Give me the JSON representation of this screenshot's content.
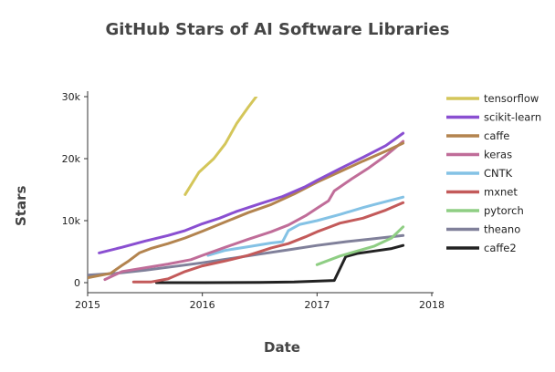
{
  "chart_data": {
    "type": "line",
    "title": "GitHub Stars of AI Software Libraries",
    "xlabel": "Date",
    "ylabel": "Stars",
    "xlim": [
      2015.0,
      2018.0
    ],
    "ylim": [
      0,
      30000
    ],
    "x_ticks": [
      2015,
      2016,
      2017,
      2018
    ],
    "x_tick_labels": [
      "2015",
      "2016",
      "2017",
      "2018"
    ],
    "y_ticks": [
      0,
      10000,
      20000,
      30000
    ],
    "y_tick_labels": [
      "0",
      "10k",
      "20k",
      "30k"
    ],
    "grid": false,
    "legend_position": "right",
    "series": [
      {
        "name": "tensorflow",
        "color": "#d4c65a",
        "points": [
          [
            2015.85,
            14200
          ],
          [
            2015.97,
            17800
          ],
          [
            2016.1,
            20000
          ],
          [
            2016.2,
            22400
          ],
          [
            2016.3,
            25700
          ],
          [
            2016.4,
            28300
          ],
          [
            2016.47,
            30000
          ]
        ]
      },
      {
        "name": "scikit-learn",
        "color": "#8a4fd1",
        "points": [
          [
            2015.1,
            4800
          ],
          [
            2015.3,
            5700
          ],
          [
            2015.5,
            6700
          ],
          [
            2015.7,
            7600
          ],
          [
            2015.85,
            8400
          ],
          [
            2016.0,
            9500
          ],
          [
            2016.15,
            10400
          ],
          [
            2016.3,
            11500
          ],
          [
            2016.5,
            12700
          ],
          [
            2016.7,
            13900
          ],
          [
            2016.9,
            15500
          ],
          [
            2017.0,
            16500
          ],
          [
            2017.2,
            18400
          ],
          [
            2017.4,
            20200
          ],
          [
            2017.6,
            22100
          ],
          [
            2017.75,
            24100
          ]
        ]
      },
      {
        "name": "caffe",
        "color": "#b3844f",
        "points": [
          [
            2015.0,
            800
          ],
          [
            2015.2,
            1500
          ],
          [
            2015.3,
            2800
          ],
          [
            2015.35,
            3400
          ],
          [
            2015.45,
            4800
          ],
          [
            2015.55,
            5500
          ],
          [
            2015.7,
            6300
          ],
          [
            2015.85,
            7200
          ],
          [
            2016.0,
            8300
          ],
          [
            2016.2,
            9800
          ],
          [
            2016.4,
            11300
          ],
          [
            2016.6,
            12600
          ],
          [
            2016.8,
            14300
          ],
          [
            2017.0,
            16200
          ],
          [
            2017.2,
            17900
          ],
          [
            2017.4,
            19600
          ],
          [
            2017.6,
            21200
          ],
          [
            2017.75,
            22500
          ]
        ]
      },
      {
        "name": "keras",
        "color": "#c06d99",
        "points": [
          [
            2015.15,
            500
          ],
          [
            2015.3,
            1800
          ],
          [
            2015.5,
            2400
          ],
          [
            2015.7,
            3000
          ],
          [
            2015.9,
            3700
          ],
          [
            2016.0,
            4400
          ],
          [
            2016.2,
            5700
          ],
          [
            2016.4,
            7000
          ],
          [
            2016.6,
            8200
          ],
          [
            2016.75,
            9300
          ],
          [
            2016.9,
            10800
          ],
          [
            2017.0,
            12000
          ],
          [
            2017.1,
            13200
          ],
          [
            2017.15,
            14800
          ],
          [
            2017.3,
            16700
          ],
          [
            2017.45,
            18500
          ],
          [
            2017.6,
            20500
          ],
          [
            2017.75,
            22800
          ]
        ]
      },
      {
        "name": "CNTK",
        "color": "#84c2e5",
        "points": [
          [
            2016.05,
            4400
          ],
          [
            2016.2,
            5200
          ],
          [
            2016.4,
            5800
          ],
          [
            2016.6,
            6400
          ],
          [
            2016.7,
            6600
          ],
          [
            2016.75,
            8400
          ],
          [
            2016.85,
            9400
          ],
          [
            2017.0,
            10000
          ],
          [
            2017.2,
            11000
          ],
          [
            2017.4,
            12100
          ],
          [
            2017.5,
            12600
          ],
          [
            2017.75,
            13800
          ]
        ]
      },
      {
        "name": "mxnet",
        "color": "#c35a5a",
        "points": [
          [
            2015.4,
            100
          ],
          [
            2015.55,
            100
          ],
          [
            2015.7,
            600
          ],
          [
            2015.85,
            1800
          ],
          [
            2016.0,
            2700
          ],
          [
            2016.2,
            3500
          ],
          [
            2016.4,
            4400
          ],
          [
            2016.6,
            5600
          ],
          [
            2016.75,
            6300
          ],
          [
            2016.9,
            7400
          ],
          [
            2017.0,
            8200
          ],
          [
            2017.1,
            8900
          ],
          [
            2017.2,
            9600
          ],
          [
            2017.4,
            10400
          ],
          [
            2017.6,
            11700
          ],
          [
            2017.75,
            12900
          ]
        ]
      },
      {
        "name": "pytorch",
        "color": "#8fce84",
        "points": [
          [
            2017.0,
            2900
          ],
          [
            2017.2,
            4300
          ],
          [
            2017.35,
            5100
          ],
          [
            2017.5,
            5900
          ],
          [
            2017.65,
            7200
          ],
          [
            2017.75,
            9000
          ]
        ]
      },
      {
        "name": "theano",
        "color": "#80809a",
        "points": [
          [
            2015.0,
            1200
          ],
          [
            2015.25,
            1500
          ],
          [
            2015.5,
            2000
          ],
          [
            2015.75,
            2600
          ],
          [
            2016.0,
            3200
          ],
          [
            2016.25,
            3900
          ],
          [
            2016.5,
            4600
          ],
          [
            2016.75,
            5300
          ],
          [
            2017.0,
            6000
          ],
          [
            2017.25,
            6600
          ],
          [
            2017.5,
            7100
          ],
          [
            2017.75,
            7600
          ]
        ]
      },
      {
        "name": "caffe2",
        "color": "#222222",
        "points": [
          [
            2015.6,
            0
          ],
          [
            2016.0,
            0
          ],
          [
            2016.5,
            50
          ],
          [
            2016.8,
            100
          ],
          [
            2017.15,
            350
          ],
          [
            2017.25,
            4200
          ],
          [
            2017.35,
            4700
          ],
          [
            2017.5,
            5100
          ],
          [
            2017.65,
            5500
          ],
          [
            2017.75,
            6000
          ]
        ]
      }
    ]
  }
}
